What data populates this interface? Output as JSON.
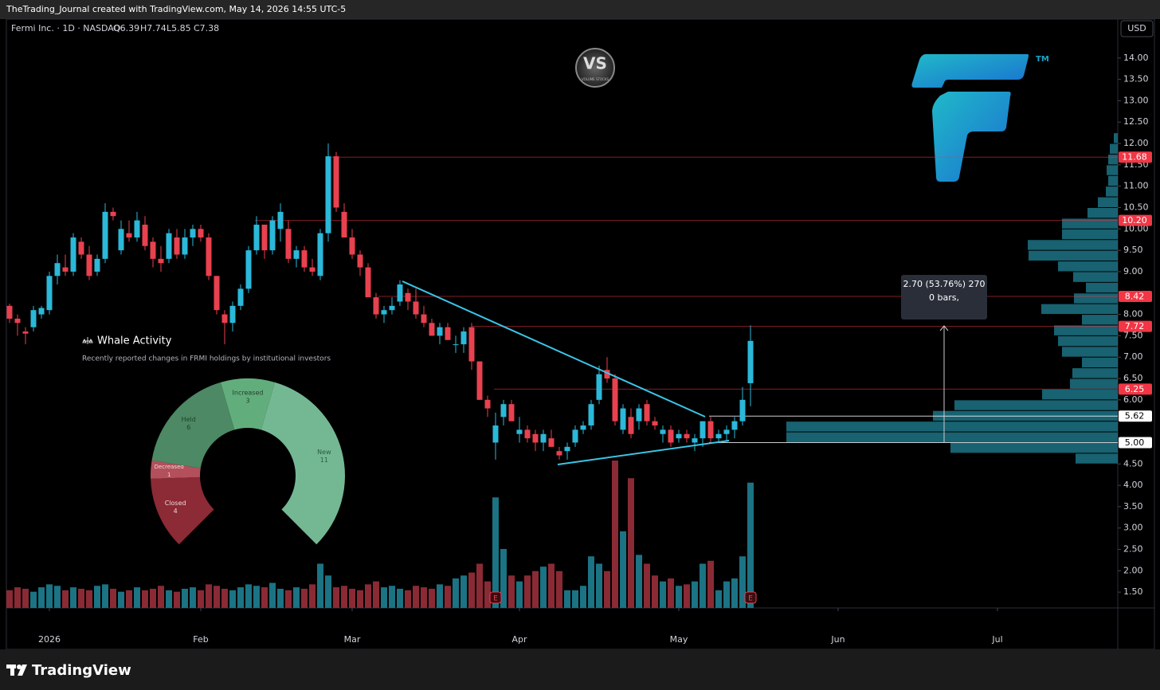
{
  "header": {
    "credit": "TheTrading_Journal created with TradingView.com, May 14, 2026 14:55 UTC-5",
    "symbol": "Fermi Inc. · 1D · NASDAQ",
    "open": "O6.39",
    "high": "H7.74",
    "low": "L5.85",
    "close": "C7.38",
    "currency": "USD",
    "logo_vs": "VS",
    "logo_vs_sub": "VOLUME STOCKS",
    "logo_tm": "TM"
  },
  "footer": {
    "brand": "TradingView"
  },
  "chart_data": [
    {
      "type": "candlestick",
      "up_color": "#2bb8d9",
      "down_color": "#e8414f",
      "volume_up_color": "#1b7384",
      "volume_down_color": "#8a2a35",
      "ylim": [
        1.13,
        14.91
      ],
      "yticks": [
        {
          "value": 1.5,
          "label": "1.50"
        },
        {
          "value": 2,
          "label": "2.00"
        },
        {
          "value": 2.5,
          "label": "2.50"
        },
        {
          "value": 3,
          "label": "3.00"
        },
        {
          "value": 3.5,
          "label": "3.50"
        },
        {
          "value": 4,
          "label": "4.00"
        },
        {
          "value": 4.5,
          "label": "4.50"
        },
        {
          "value": 6,
          "label": "6.00"
        },
        {
          "value": 6.5,
          "label": "6.50"
        },
        {
          "value": 7,
          "label": "7.00"
        },
        {
          "value": 7.5,
          "label": "7.50"
        },
        {
          "value": 8,
          "label": "8.00"
        },
        {
          "value": 9,
          "label": "9.00"
        },
        {
          "value": 9.5,
          "label": "9.50"
        },
        {
          "value": 10,
          "label": "10.00"
        },
        {
          "value": 10.5,
          "label": "10.50"
        },
        {
          "value": 11,
          "label": "11.00"
        },
        {
          "value": 11.5,
          "label": "11.50"
        },
        {
          "value": 12,
          "label": "12.00"
        },
        {
          "value": 12.5,
          "label": "12.50"
        },
        {
          "value": 13,
          "label": "13.00"
        },
        {
          "value": 13.5,
          "label": "13.50"
        },
        {
          "value": 14,
          "label": "14.00"
        }
      ],
      "xlim": [
        -0.4,
        139.1
      ],
      "xticks": [
        {
          "value": 5,
          "label": "2026"
        },
        {
          "value": 24,
          "label": "Feb"
        },
        {
          "value": 43,
          "label": "Mar"
        },
        {
          "value": 64,
          "label": "Apr"
        },
        {
          "value": 84,
          "label": "May"
        },
        {
          "value": 104,
          "label": "Jun"
        },
        {
          "value": 124,
          "label": "Jul"
        }
      ],
      "ohlc": [
        [
          8.2,
          8.25,
          7.8,
          7.9
        ],
        [
          7.9,
          8.0,
          7.5,
          7.8
        ],
        [
          7.6,
          7.7,
          7.3,
          7.55
        ],
        [
          7.7,
          8.2,
          7.6,
          8.1
        ],
        [
          8.0,
          8.2,
          7.9,
          8.15
        ],
        [
          8.1,
          9.0,
          8.0,
          8.9
        ],
        [
          8.9,
          9.4,
          8.7,
          9.2
        ],
        [
          9.1,
          9.4,
          8.9,
          9.0
        ],
        [
          9.0,
          9.9,
          8.9,
          9.8
        ],
        [
          9.7,
          9.8,
          9.3,
          9.4
        ],
        [
          9.4,
          9.6,
          8.8,
          8.9
        ],
        [
          9.0,
          9.4,
          8.9,
          9.3
        ],
        [
          9.3,
          10.6,
          9.2,
          10.4
        ],
        [
          10.4,
          10.5,
          10.2,
          10.3
        ],
        [
          9.5,
          10.2,
          9.4,
          10.0
        ],
        [
          9.9,
          10.2,
          9.7,
          9.8
        ],
        [
          9.8,
          10.4,
          9.7,
          10.2
        ],
        [
          10.1,
          10.3,
          9.5,
          9.6
        ],
        [
          9.7,
          9.8,
          9.1,
          9.3
        ],
        [
          9.3,
          9.6,
          9.0,
          9.2
        ],
        [
          9.3,
          10.0,
          9.2,
          9.9
        ],
        [
          9.8,
          10.0,
          9.3,
          9.4
        ],
        [
          9.4,
          10.0,
          9.3,
          9.8
        ],
        [
          9.8,
          10.1,
          9.6,
          10.0
        ],
        [
          10.0,
          10.1,
          9.7,
          9.8
        ],
        [
          9.8,
          9.9,
          8.8,
          8.9
        ],
        [
          8.9,
          8.9,
          8.0,
          8.1
        ],
        [
          8.0,
          8.1,
          7.3,
          7.8
        ],
        [
          7.8,
          8.3,
          7.6,
          8.2
        ],
        [
          8.2,
          8.7,
          8.1,
          8.6
        ],
        [
          8.6,
          9.6,
          8.5,
          9.5
        ],
        [
          9.5,
          10.3,
          9.4,
          10.1
        ],
        [
          10.1,
          10.1,
          9.3,
          9.5
        ],
        [
          9.5,
          10.3,
          9.4,
          10.2
        ],
        [
          10.0,
          10.6,
          9.7,
          10.4
        ],
        [
          10.0,
          10.2,
          9.2,
          9.3
        ],
        [
          9.3,
          9.6,
          9.1,
          9.5
        ],
        [
          9.5,
          9.6,
          9.0,
          9.1
        ],
        [
          9.1,
          9.3,
          8.9,
          9.0
        ],
        [
          8.9,
          10.0,
          8.8,
          9.9
        ],
        [
          9.9,
          12.0,
          9.7,
          11.7
        ],
        [
          11.7,
          11.8,
          10.4,
          10.5
        ],
        [
          10.4,
          10.6,
          9.8,
          9.8
        ],
        [
          9.8,
          10.0,
          9.3,
          9.4
        ],
        [
          9.4,
          9.5,
          8.9,
          9.1
        ],
        [
          9.1,
          9.2,
          8.4,
          8.4
        ],
        [
          8.4,
          8.5,
          7.9,
          8.0
        ],
        [
          8.0,
          8.2,
          7.8,
          8.1
        ],
        [
          8.1,
          8.4,
          8.0,
          8.2
        ],
        [
          8.3,
          8.8,
          8.2,
          8.7
        ],
        [
          8.5,
          8.6,
          8.1,
          8.3
        ],
        [
          8.3,
          8.6,
          7.9,
          8.0
        ],
        [
          8.0,
          8.2,
          7.7,
          7.8
        ],
        [
          7.8,
          7.9,
          7.5,
          7.5
        ],
        [
          7.5,
          7.8,
          7.3,
          7.7
        ],
        [
          7.7,
          7.8,
          7.4,
          7.4
        ],
        [
          7.3,
          7.5,
          7.1,
          7.3
        ],
        [
          7.3,
          7.7,
          7.1,
          7.6
        ],
        [
          7.7,
          7.8,
          6.7,
          6.9
        ],
        [
          6.9,
          6.9,
          6.0,
          6.0
        ],
        [
          6.0,
          6.1,
          5.6,
          5.8
        ],
        [
          5.0,
          5.7,
          4.6,
          5.4
        ],
        [
          5.6,
          6.0,
          5.4,
          5.9
        ],
        [
          5.9,
          6.0,
          5.5,
          5.5
        ],
        [
          5.2,
          5.6,
          5.0,
          5.3
        ],
        [
          5.3,
          5.4,
          5.0,
          5.1
        ],
        [
          5.2,
          5.3,
          4.8,
          5.0
        ],
        [
          5.0,
          5.3,
          4.8,
          5.2
        ],
        [
          5.1,
          5.3,
          4.9,
          4.9
        ],
        [
          4.8,
          4.9,
          4.6,
          4.7
        ],
        [
          4.8,
          5.0,
          4.6,
          4.9
        ],
        [
          5.0,
          5.4,
          4.9,
          5.3
        ],
        [
          5.3,
          5.5,
          5.2,
          5.4
        ],
        [
          5.4,
          6.0,
          5.3,
          5.9
        ],
        [
          6.0,
          6.8,
          5.9,
          6.6
        ],
        [
          6.7,
          7.0,
          6.4,
          6.5
        ],
        [
          6.5,
          6.6,
          5.4,
          5.5
        ],
        [
          5.3,
          5.9,
          5.2,
          5.8
        ],
        [
          5.6,
          5.8,
          5.1,
          5.2
        ],
        [
          5.5,
          5.9,
          5.3,
          5.8
        ],
        [
          5.9,
          6.0,
          5.4,
          5.5
        ],
        [
          5.5,
          5.6,
          5.3,
          5.4
        ],
        [
          5.2,
          5.4,
          5.0,
          5.3
        ],
        [
          5.3,
          5.4,
          4.9,
          5.0
        ],
        [
          5.1,
          5.3,
          5.0,
          5.2
        ],
        [
          5.2,
          5.3,
          5.0,
          5.1
        ],
        [
          5.0,
          5.2,
          4.8,
          5.1
        ],
        [
          5.1,
          5.5,
          4.9,
          5.5
        ],
        [
          5.5,
          5.6,
          5.0,
          5.1
        ],
        [
          5.1,
          5.3,
          5.0,
          5.2
        ],
        [
          5.2,
          5.4,
          5.0,
          5.3
        ],
        [
          5.3,
          5.6,
          5.1,
          5.5
        ],
        [
          5.5,
          6.3,
          5.4,
          6.0
        ],
        [
          6.39,
          7.74,
          5.85,
          7.38
        ]
      ],
      "volume": [
        12,
        14,
        13,
        11,
        14,
        16,
        15,
        12,
        14,
        13,
        12,
        15,
        16,
        13,
        11,
        12,
        14,
        12,
        13,
        15,
        12,
        11,
        13,
        14,
        12,
        16,
        15,
        13,
        12,
        14,
        16,
        15,
        14,
        17,
        13,
        12,
        14,
        13,
        16,
        30,
        22,
        14,
        15,
        13,
        12,
        16,
        18,
        14,
        15,
        13,
        12,
        15,
        14,
        13,
        16,
        15,
        20,
        22,
        24,
        30,
        18,
        75,
        40,
        22,
        18,
        22,
        25,
        28,
        30,
        25,
        12,
        12,
        15,
        35,
        30,
        25,
        100,
        52,
        88,
        36,
        30,
        22,
        18,
        20,
        15,
        16,
        18,
        30,
        32,
        12,
        18,
        20,
        35,
        85
      ],
      "earnings_label": "E",
      "volume_profile": {
        "color": "#1c7385",
        "bins": [
          4.5,
          4.75,
          5,
          5.25,
          5.5,
          5.75,
          6,
          6.25,
          6.5,
          6.75,
          7,
          7.25,
          7.5,
          7.75,
          8,
          8.25,
          8.5,
          8.75,
          9,
          9.25,
          9.5,
          9.75,
          10,
          10.25,
          10.5,
          10.75,
          11,
          11.25,
          11.5,
          11.75,
          12,
          12.25
        ],
        "values": [
          53,
          210,
          416,
          416,
          232,
          205,
          95,
          60,
          57,
          45,
          70,
          75,
          80,
          45,
          96,
          55,
          40,
          56,
          75,
          112,
          113,
          70,
          70,
          38,
          25,
          15,
          12,
          14,
          12,
          10,
          5
        ]
      },
      "levels": [
        {
          "value": 11.68,
          "color": "#f23645"
        },
        {
          "value": 10.2,
          "label": "10.20",
          "color": "#f23645"
        },
        {
          "value": 8.42,
          "color": "#f23645"
        },
        {
          "value": 7.72,
          "color": "#f23645"
        },
        {
          "value": 6.25,
          "color": "#f23645"
        },
        {
          "value": 5.62,
          "color": "#ffffff"
        },
        {
          "value": 5,
          "label": "5.00",
          "color": "#ffffff"
        }
      ],
      "measure": {
        "text": "2.70 (53.76%) 270",
        "bars": "0 bars,"
      }
    },
    {
      "type": "pie",
      "title": "Whale Activity",
      "subtitle": "Recently reported changes in FRMI holdings by institutional investors",
      "categories": [
        "Closed",
        "Decreased",
        "Held",
        "Increased",
        "New"
      ],
      "values": [
        4,
        1,
        6,
        3,
        11
      ],
      "colors": [
        "#8c2a36",
        "#b3505b",
        "#4c8964",
        "#62ad7c",
        "#74b893"
      ],
      "label_colors": [
        "#f0d8da",
        "#f0d8da",
        "#23402e",
        "#23402e",
        "#2e5a40"
      ]
    }
  ]
}
